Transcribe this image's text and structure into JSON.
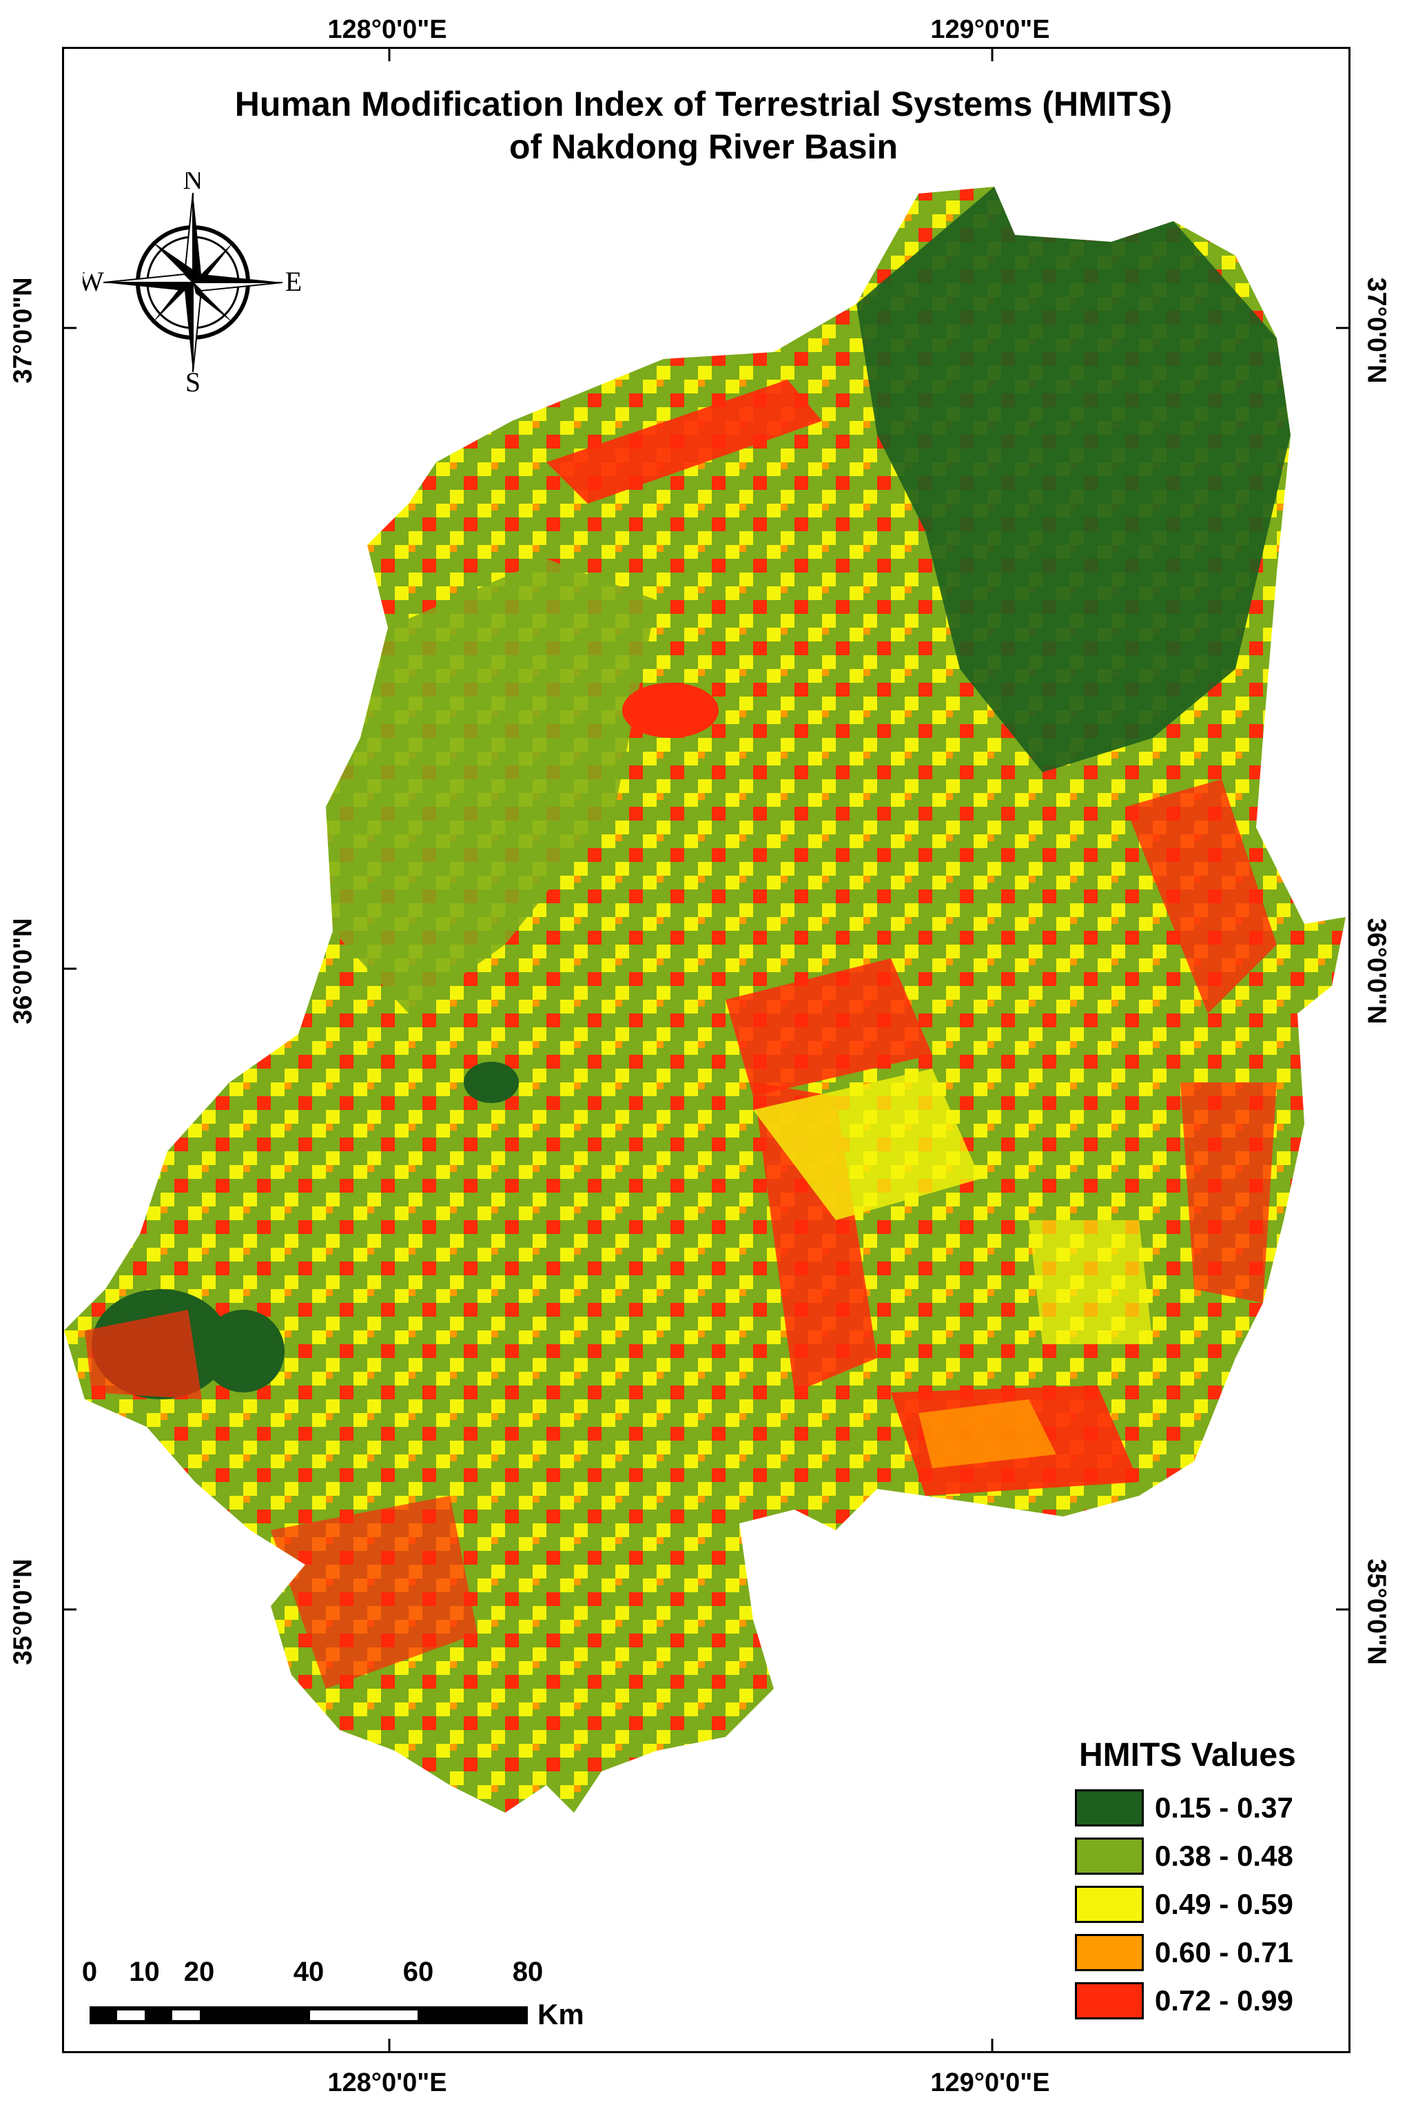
{
  "title": {
    "line1": "Human Modification Index of Terrestrial Systems (HMITS)",
    "line2": "of Nakdong River Basin"
  },
  "graticule": {
    "top": [
      "128°0'0\"E",
      "129°0'0\"E"
    ],
    "bottom": [
      "128°0'0\"E",
      "129°0'0\"E"
    ],
    "left": [
      "37°0'0\"N",
      "36°0'0\"N",
      "35°0'0\"N"
    ],
    "right": [
      "37°0'0\"N",
      "36°0'0\"N",
      "35°0'0\"N"
    ]
  },
  "compass": {
    "n": "N",
    "s": "S",
    "e": "E",
    "w": "W"
  },
  "legend": {
    "title": "HMITS Values",
    "classes": [
      {
        "label": "0.15 - 0.37",
        "color": "#1e5e1e"
      },
      {
        "label": "0.38 - 0.48",
        "color": "#7cab1c"
      },
      {
        "label": "0.49 - 0.59",
        "color": "#f5f50a"
      },
      {
        "label": "0.60 - 0.71",
        "color": "#ff9a00"
      },
      {
        "label": "0.72 - 0.99",
        "color": "#ff2a0a"
      }
    ]
  },
  "scale": {
    "ticks": [
      "0",
      "10",
      "20",
      "40",
      "60",
      "80"
    ],
    "unit": "Km"
  }
}
